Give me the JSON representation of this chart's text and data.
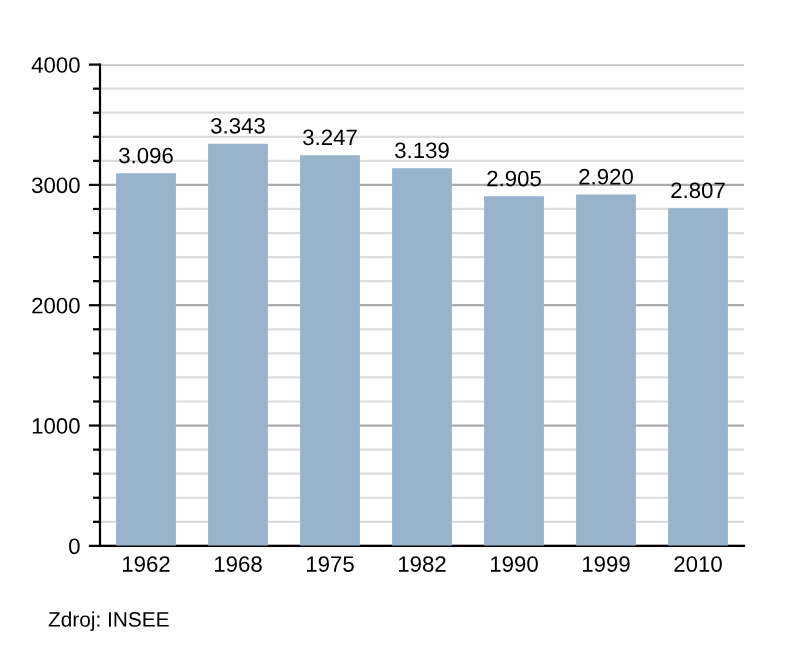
{
  "chart_data": {
    "type": "bar",
    "categories": [
      "1962",
      "1968",
      "1975",
      "1982",
      "1990",
      "1999",
      "2010"
    ],
    "values": [
      3096,
      3343,
      3247,
      3139,
      2905,
      2920,
      2807
    ],
    "value_labels": [
      "3.096",
      "3.343",
      "3.247",
      "3.139",
      "2.905",
      "2.920",
      "2.807"
    ],
    "color": "#98b3cc",
    "ylim": [
      0,
      4000
    ],
    "yticks": [
      0,
      {
        "value": 200,
        "label": null
      },
      {
        "value": 400,
        "label": null
      },
      {
        "value": 600,
        "label": null
      },
      {
        "value": 800,
        "label": null
      },
      1000,
      {
        "value": 1200,
        "label": null
      },
      {
        "value": 1400,
        "label": null
      },
      {
        "value": 1600,
        "label": null
      },
      {
        "value": 1800,
        "label": null
      },
      2000,
      {
        "value": 2200,
        "label": null
      },
      {
        "value": 2400,
        "label": null
      },
      {
        "value": 2600,
        "label": null
      },
      {
        "value": 2800,
        "label": null
      },
      3000,
      {
        "value": 3200,
        "label": null
      },
      {
        "value": 3400,
        "label": null
      },
      {
        "value": 3600,
        "label": null
      },
      {
        "value": 3800,
        "label": null
      },
      4000
    ],
    "grid": "y",
    "annotations": [
      "Zdroj: INSEE"
    ]
  }
}
